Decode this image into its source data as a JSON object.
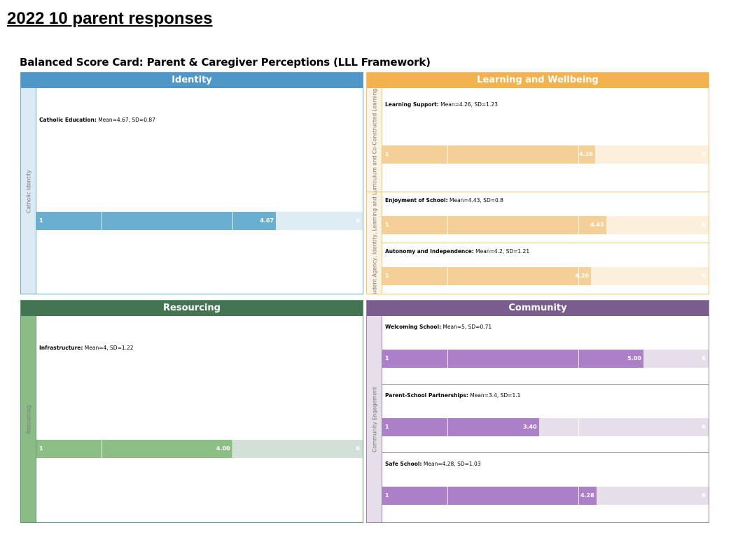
{
  "page_title": "2022 10 parent responses",
  "card_title": "Balanced Score Card: Parent & Caregiver Perceptions (LLL Framework)",
  "chart_data": {
    "type": "bar",
    "title": "Balanced Score Card: Parent & Caregiver Perceptions (LLL Framework)",
    "xlim": [
      1,
      6
    ],
    "quadrants": [
      {
        "key": "identity",
        "title": "Identity",
        "colors": {
          "header": "#4f97c9",
          "border": "#6aa8d3",
          "side": "#dceaf4",
          "fill": "#6aafd2",
          "track": "#deedf4"
        },
        "groups": [
          {
            "side_label": "Catholic Identity",
            "metrics": [
              {
                "name": "Catholic Education",
                "stats": "Mean=4.67, SD=0.87",
                "mean": 4.67,
                "sd": 0.87,
                "value_label": "4.67"
              }
            ]
          }
        ]
      },
      {
        "key": "learning",
        "title": "Learning and Wellbeing",
        "colors": {
          "header": "#f4b24e",
          "border": "#f4c372",
          "side": "#fdf3e3",
          "fill": "#f5cf98",
          "track": "#fcf0dc"
        },
        "groups": [
          {
            "side_label": "Curriculum and Co-Constructed Learning...",
            "metrics": [
              {
                "name": "Learning Support",
                "stats": "Mean=4.26, SD=1.23",
                "mean": 4.26,
                "sd": 1.23,
                "value_label": "4.26"
              }
            ]
          },
          {
            "side_label": "Student Agency, Identity, Learning and L...",
            "metrics": [
              {
                "name": "Enjoyment of School",
                "stats": "Mean=4.43, SD=0.8",
                "mean": 4.43,
                "sd": 0.8,
                "value_label": "4.43"
              },
              {
                "name": "Autonomy and Independence",
                "stats": "Mean=4.2, SD=1.21",
                "mean": 4.2,
                "sd": 1.21,
                "value_label": "4.20"
              }
            ]
          }
        ]
      },
      {
        "key": "resourcing",
        "title": "Resourcing",
        "colors": {
          "header": "#447553",
          "border": "#5f9670",
          "side": "#8bbc86",
          "fill": "#8bbf86",
          "track": "#d3e0d8"
        },
        "groups": [
          {
            "side_label": "Resourcing",
            "metrics": [
              {
                "name": "Infrastructure",
                "stats": "Mean=4, SD=1.22",
                "mean": 4.0,
                "sd": 1.22,
                "value_label": "4.00"
              }
            ]
          }
        ]
      },
      {
        "key": "community",
        "title": "Community",
        "colors": {
          "header": "#7a5c8e",
          "border": "#9b82ad",
          "side": "#e6dfe9",
          "fill": "#ac80c8",
          "track": "#e6dfe9"
        },
        "groups": [
          {
            "side_label": "Community Engagement",
            "metrics": [
              {
                "name": "Welcoming School",
                "stats": "Mean=5, SD=0.71",
                "mean": 5.0,
                "sd": 0.71,
                "value_label": "5.00"
              },
              {
                "name": "Parent-School Partnerships",
                "stats": "Mean=3.4, SD=1.1",
                "mean": 3.4,
                "sd": 1.1,
                "value_label": "3.40"
              },
              {
                "name": "Safe School",
                "stats": "Mean=4.28, SD=1.03",
                "mean": 4.28,
                "sd": 1.03,
                "value_label": "4.28"
              }
            ]
          }
        ]
      }
    ]
  }
}
